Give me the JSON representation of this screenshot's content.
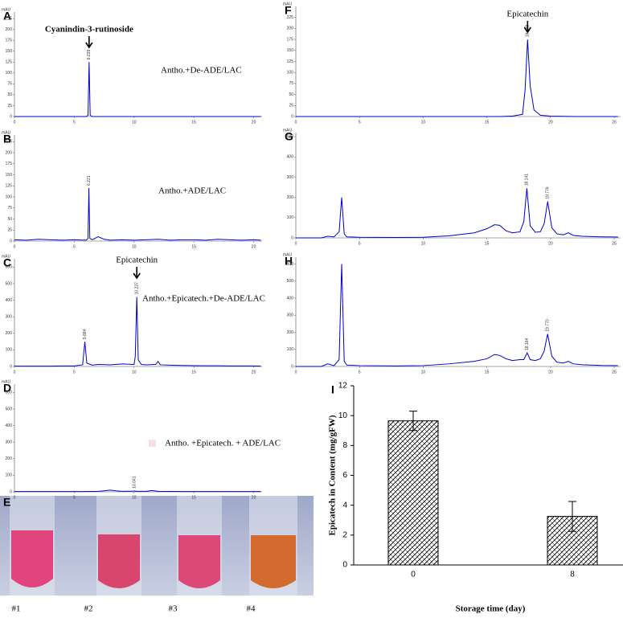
{
  "chart_data": [
    {
      "type": "line",
      "panel": "A",
      "unit": "mAU",
      "compound": "Cyanindin-3-rutinoside",
      "annotation": "Antho.+De-ADE/LAC",
      "x": [
        0,
        1,
        2,
        3,
        4,
        5,
        6,
        6.15,
        6.239,
        6.33,
        6.5,
        7,
        8,
        9,
        10,
        11,
        12,
        13,
        14,
        15,
        16,
        17,
        18,
        19,
        20,
        20.6
      ],
      "series": [
        {
          "color": "#0000cc",
          "values": [
            0,
            0,
            0,
            0,
            0,
            0,
            0,
            3,
            125,
            3,
            0,
            0,
            0,
            0,
            0,
            0,
            0,
            0,
            0,
            0,
            0,
            0,
            0,
            0,
            0,
            0
          ]
        }
      ],
      "peak_labels": [
        6.239
      ],
      "xlim": [
        0,
        20.7
      ],
      "xticks": [
        0,
        5,
        10,
        15,
        20
      ],
      "ylim": [
        0,
        240
      ],
      "yticks": [
        0,
        25,
        50,
        75,
        100,
        125,
        150,
        175,
        200,
        225
      ]
    },
    {
      "type": "line",
      "panel": "B",
      "unit": "mAU",
      "annotation": "Antho.+ADE/LAC",
      "x": [
        0,
        1,
        2,
        3,
        4,
        5,
        6,
        6.15,
        6.221,
        6.3,
        6.5,
        7,
        7.5,
        8,
        9,
        10,
        11,
        12,
        13,
        14,
        15,
        16,
        17,
        18,
        19,
        20,
        20.6
      ],
      "series": [
        {
          "color": "#0000cc",
          "values": [
            3,
            2,
            4,
            3,
            2,
            3,
            2,
            6,
            120,
            6,
            3,
            10,
            4,
            2,
            3,
            2,
            3,
            4,
            2,
            3,
            3,
            2,
            4,
            3,
            2,
            3,
            2
          ]
        }
      ],
      "peak_labels": [
        6.221
      ],
      "xlim": [
        0,
        20.7
      ],
      "xticks": [
        0,
        5,
        10,
        15,
        20
      ],
      "ylim": [
        0,
        240
      ],
      "yticks": [
        0,
        25,
        50,
        75,
        100,
        125,
        150,
        175,
        200,
        225
      ]
    },
    {
      "type": "line",
      "panel": "C",
      "unit": "mAU",
      "compound": "Epicatechin",
      "annotation": "Antho.+Epicatech.+De-ADE/LAC",
      "x": [
        0,
        1,
        2,
        3,
        4,
        5,
        5.7,
        5.884,
        6.05,
        6.5,
        7,
        8,
        9,
        10,
        10.1,
        10.227,
        10.35,
        10.6,
        11,
        11.8,
        12,
        12.2,
        13,
        14,
        15,
        16,
        17,
        18,
        19,
        20,
        20.6
      ],
      "series": [
        {
          "color": "#0000cc",
          "values": [
            2,
            2,
            2,
            2,
            3,
            3,
            10,
            150,
            20,
            8,
            12,
            10,
            15,
            12,
            60,
            420,
            40,
            12,
            10,
            12,
            30,
            10,
            8,
            6,
            5,
            4,
            4,
            3,
            3,
            3,
            2
          ]
        }
      ],
      "peak_labels": [
        5.884,
        10.227
      ],
      "xlim": [
        0,
        20.7
      ],
      "xticks": [
        0,
        5,
        10,
        15,
        20
      ],
      "ylim": [
        0,
        650
      ],
      "yticks": [
        0,
        100,
        200,
        300,
        400,
        500,
        600
      ]
    },
    {
      "type": "line",
      "panel": "D",
      "unit": "mAU",
      "annotation": "Antho. +Epicatech. + ADE/LAC",
      "x": [
        0,
        2,
        4,
        6,
        7,
        7.5,
        8,
        8.5,
        9,
        10,
        10.041,
        10.2,
        11,
        11.5,
        12,
        14,
        16,
        18,
        20,
        20.6
      ],
      "series": [
        {
          "color": "#0000cc",
          "values": [
            2,
            2,
            2,
            2,
            3,
            6,
            10,
            6,
            3,
            4,
            6,
            3,
            3,
            8,
            3,
            2,
            2,
            2,
            2,
            2
          ]
        }
      ],
      "peak_labels": [
        10.041
      ],
      "xlim": [
        0,
        20.7
      ],
      "xticks": [
        0,
        5,
        10,
        15,
        20
      ],
      "ylim": [
        0,
        650
      ],
      "yticks": [
        0,
        100,
        200,
        300,
        400,
        500,
        600
      ]
    },
    {
      "type": "line",
      "panel": "F",
      "unit": "mAU",
      "compound": "Epicatechin",
      "x": [
        0,
        2,
        4,
        6,
        8,
        10,
        12,
        14,
        16,
        17,
        17.8,
        18,
        18.198,
        18.4,
        18.7,
        19.2,
        20,
        22,
        24,
        25.3
      ],
      "series": [
        {
          "color": "#0000cc",
          "values": [
            0,
            0,
            0,
            0,
            0,
            0,
            0,
            0,
            0,
            1,
            5,
            60,
            175,
            70,
            15,
            3,
            1,
            0,
            0,
            0
          ]
        }
      ],
      "peak_labels": [
        18.198
      ],
      "xlim": [
        0,
        25.5
      ],
      "xticks": [
        0,
        5,
        10,
        15,
        20,
        25
      ],
      "ylim": [
        0,
        250
      ],
      "yticks": [
        0,
        25,
        50,
        75,
        100,
        125,
        150,
        175,
        200,
        225
      ]
    },
    {
      "type": "line",
      "panel": "G",
      "unit": "mAU",
      "x": [
        0,
        2,
        2.5,
        3,
        3.4,
        3.6,
        3.8,
        4,
        5,
        8,
        10,
        12,
        14,
        15,
        15.6,
        16,
        16.5,
        17,
        17.6,
        17.9,
        18.141,
        18.4,
        18.8,
        19.2,
        19.5,
        19.776,
        20.1,
        20.5,
        21,
        21.4,
        21.8,
        22.5,
        24,
        25.3
      ],
      "series": [
        {
          "color": "#0000cc",
          "values": [
            0,
            0,
            8,
            5,
            30,
            200,
            20,
            5,
            3,
            2,
            3,
            10,
            25,
            45,
            65,
            62,
            35,
            25,
            30,
            80,
            245,
            60,
            28,
            30,
            70,
            180,
            50,
            20,
            15,
            25,
            12,
            8,
            5,
            4
          ]
        }
      ],
      "peak_labels": [
        18.141,
        19.776
      ],
      "xlim": [
        0,
        25.5
      ],
      "xticks": [
        0,
        5,
        10,
        15,
        20,
        25
      ],
      "ylim": [
        0,
        520
      ],
      "yticks": [
        0,
        100,
        200,
        300,
        400,
        500
      ]
    },
    {
      "type": "line",
      "panel": "H",
      "unit": "mAU",
      "x": [
        0,
        2,
        2.5,
        3,
        3.4,
        3.6,
        3.8,
        4,
        5,
        8,
        10,
        12,
        14,
        15,
        15.6,
        16,
        16.5,
        17,
        17.6,
        17.9,
        18.164,
        18.4,
        18.8,
        19.2,
        19.5,
        19.77,
        20.1,
        20.5,
        21,
        21.4,
        21.8,
        22.5,
        24,
        25.3
      ],
      "series": [
        {
          "color": "#0000cc",
          "values": [
            0,
            0,
            15,
            5,
            40,
            600,
            30,
            8,
            5,
            3,
            5,
            15,
            30,
            45,
            70,
            65,
            45,
            35,
            40,
            40,
            80,
            40,
            35,
            45,
            90,
            190,
            60,
            25,
            20,
            30,
            15,
            10,
            6,
            5
          ]
        }
      ],
      "peak_labels": [
        18.164,
        {
          "value": 19.77,
          "label": "19.770"
        }
      ],
      "xlim": [
        0,
        25.5
      ],
      "xticks": [
        0,
        5,
        10,
        15,
        20,
        25
      ],
      "ylim": [
        0,
        640
      ],
      "yticks": [
        0,
        100,
        200,
        300,
        400,
        500,
        600
      ]
    },
    {
      "type": "bar",
      "panel": "I",
      "categories": [
        "0",
        "8"
      ],
      "values": [
        9.65,
        3.25
      ],
      "errors": [
        0.65,
        1.0
      ],
      "x_label": "Storage time (day)",
      "y_label": "Epicatech in Content (mg/gFW)",
      "color": "#000000",
      "ylim": [
        0,
        12
      ],
      "yticks": [
        0,
        2,
        4,
        6,
        8,
        10,
        12
      ]
    }
  ],
  "photo": {
    "panel": "E",
    "labels": [
      "#1",
      "#2",
      "#3",
      "#4"
    ]
  }
}
